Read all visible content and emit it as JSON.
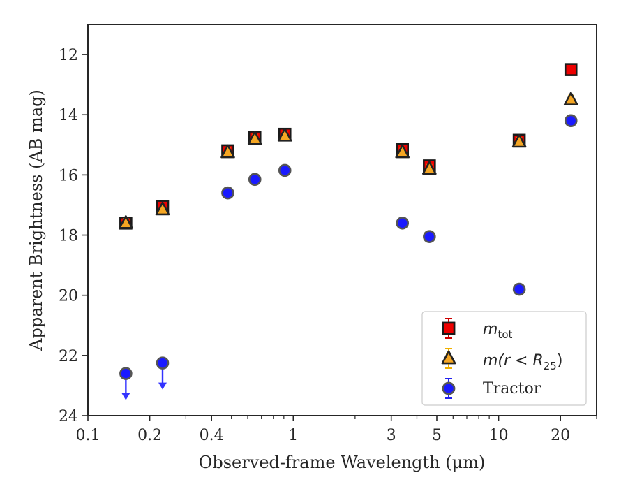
{
  "chart_data": {
    "type": "scatter",
    "title": "",
    "xlabel": "Observed-frame Wavelength (μm)",
    "ylabel": "Apparent Brightness (AB mag)",
    "xscale": "log",
    "xlim": [
      0.1,
      30
    ],
    "ylim": [
      24,
      11
    ],
    "y_inverted": true,
    "grid": false,
    "legend_position": "bottom-right",
    "x_ticks": [
      {
        "value": 0.1,
        "label": "0.1"
      },
      {
        "value": 0.2,
        "label": "0.2"
      },
      {
        "value": 0.4,
        "label": "0.4"
      },
      {
        "value": 1,
        "label": "1"
      },
      {
        "value": 3,
        "label": "3"
      },
      {
        "value": 5,
        "label": "5"
      },
      {
        "value": 10,
        "label": "10"
      },
      {
        "value": 20,
        "label": "20"
      }
    ],
    "y_ticks": [
      {
        "value": 12,
        "label": "12"
      },
      {
        "value": 14,
        "label": "14"
      },
      {
        "value": 16,
        "label": "16"
      },
      {
        "value": 18,
        "label": "18"
      },
      {
        "value": 20,
        "label": "20"
      },
      {
        "value": 22,
        "label": "22"
      },
      {
        "value": 24,
        "label": "24"
      }
    ],
    "series": [
      {
        "name": "m_tot",
        "marker": "square",
        "color": "#ee0000",
        "errorbar_color": "#cc0000",
        "points": [
          {
            "x": 0.153,
            "y": 17.6
          },
          {
            "x": 0.231,
            "y": 17.05
          },
          {
            "x": 0.48,
            "y": 15.2
          },
          {
            "x": 0.65,
            "y": 14.75
          },
          {
            "x": 0.91,
            "y": 14.65
          },
          {
            "x": 3.4,
            "y": 15.15
          },
          {
            "x": 4.6,
            "y": 15.7
          },
          {
            "x": 12.6,
            "y": 14.85
          },
          {
            "x": 22.5,
            "y": 12.5
          }
        ]
      },
      {
        "name": "m(r < R25)",
        "marker": "triangle",
        "color": "#f5a623",
        "errorbar_color": "#f0b000",
        "points": [
          {
            "x": 0.153,
            "y": 17.6
          },
          {
            "x": 0.231,
            "y": 17.15
          },
          {
            "x": 0.48,
            "y": 15.25
          },
          {
            "x": 0.65,
            "y": 14.8
          },
          {
            "x": 0.91,
            "y": 14.7
          },
          {
            "x": 3.4,
            "y": 15.25
          },
          {
            "x": 4.6,
            "y": 15.8
          },
          {
            "x": 12.6,
            "y": 14.9
          },
          {
            "x": 22.5,
            "y": 13.5
          }
        ]
      },
      {
        "name": "Tractor",
        "marker": "circle",
        "color": "#1a1aff",
        "errorbar_color": "#2222ee",
        "points": [
          {
            "x": 0.153,
            "y": 22.6,
            "upper_limit": true
          },
          {
            "x": 0.231,
            "y": 22.25,
            "upper_limit": true
          },
          {
            "x": 0.48,
            "y": 16.6
          },
          {
            "x": 0.65,
            "y": 16.15
          },
          {
            "x": 0.91,
            "y": 15.85
          },
          {
            "x": 3.4,
            "y": 17.6
          },
          {
            "x": 4.6,
            "y": 18.05
          },
          {
            "x": 12.6,
            "y": 19.8
          },
          {
            "x": 22.5,
            "y": 14.2
          }
        ]
      }
    ]
  },
  "legend": {
    "mtot_main": "m",
    "mtot_sub": "tot",
    "mr_prefix": "m(r < R",
    "mr_sub": "25",
    "mr_suffix": ")",
    "tractor": "Tractor"
  }
}
